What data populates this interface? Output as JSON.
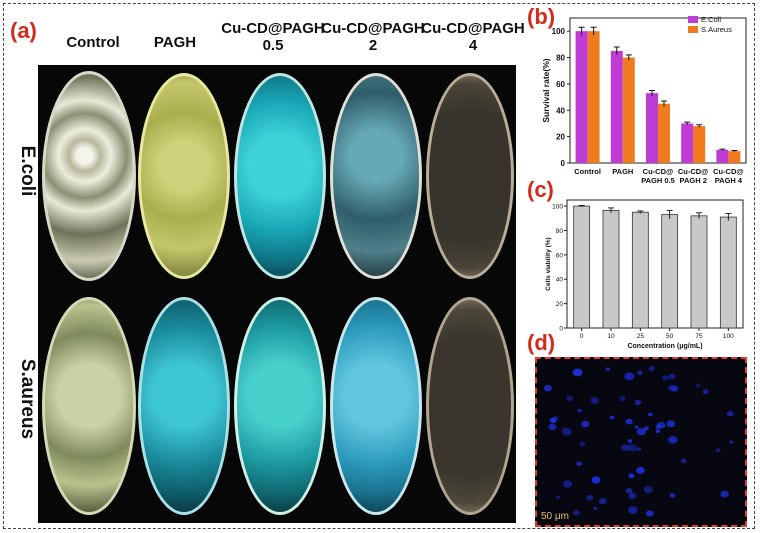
{
  "panels": {
    "a": "(a)",
    "b": "(b)",
    "c": "(c)",
    "d": "(d)"
  },
  "columns": [
    "Control",
    "PAGH",
    "Cu-CD@PAGH",
    "Cu-CD@PAGH",
    "Cu-CD@PAGH"
  ],
  "column_doses": [
    "",
    "",
    "0.5",
    "2",
    "4"
  ],
  "rows": [
    "E.coli",
    "S.aureus"
  ],
  "scale_bar": "50 μm",
  "colors": {
    "panel_label": "#d42a1a",
    "ecoli": "#c03ad6",
    "saureus": "#f07a1e",
    "viability_bar": "#c8c8c8"
  },
  "chart_data": [
    {
      "type": "bar",
      "panel": "(b)",
      "categories": [
        "Control",
        "PAGH",
        "Cu-CD@\nPAGH 0.5",
        "Cu-CD@\nPAGH 2",
        "Cu-CD@\nPAGH 4"
      ],
      "series": [
        {
          "name": "E.Coli",
          "values": [
            100,
            85,
            53,
            30,
            10
          ],
          "errors": [
            3,
            3,
            2,
            1,
            0.5
          ]
        },
        {
          "name": "S.Aureus",
          "values": [
            100,
            80,
            45,
            28,
            9
          ],
          "errors": [
            3,
            2,
            2,
            1,
            0.5
          ]
        }
      ],
      "ylabel": "Survival rate(%)",
      "xlabel": "",
      "ylim": [
        0,
        110
      ],
      "yticks": [
        0,
        20,
        40,
        60,
        80,
        100
      ],
      "legend": "top-right"
    },
    {
      "type": "bar",
      "panel": "(c)",
      "categories": [
        "0",
        "10",
        "25",
        "50",
        "75",
        "100"
      ],
      "values": [
        100,
        96.5,
        95,
        93,
        92,
        91
      ],
      "errors": [
        0.5,
        2,
        1,
        3.5,
        2.5,
        3
      ],
      "xlabel": "Concentration (μg/mL)",
      "ylabel": "Cells viability (%)",
      "ylim": [
        0,
        105
      ],
      "yticks": [
        0,
        20,
        40,
        60,
        80,
        100
      ]
    }
  ]
}
